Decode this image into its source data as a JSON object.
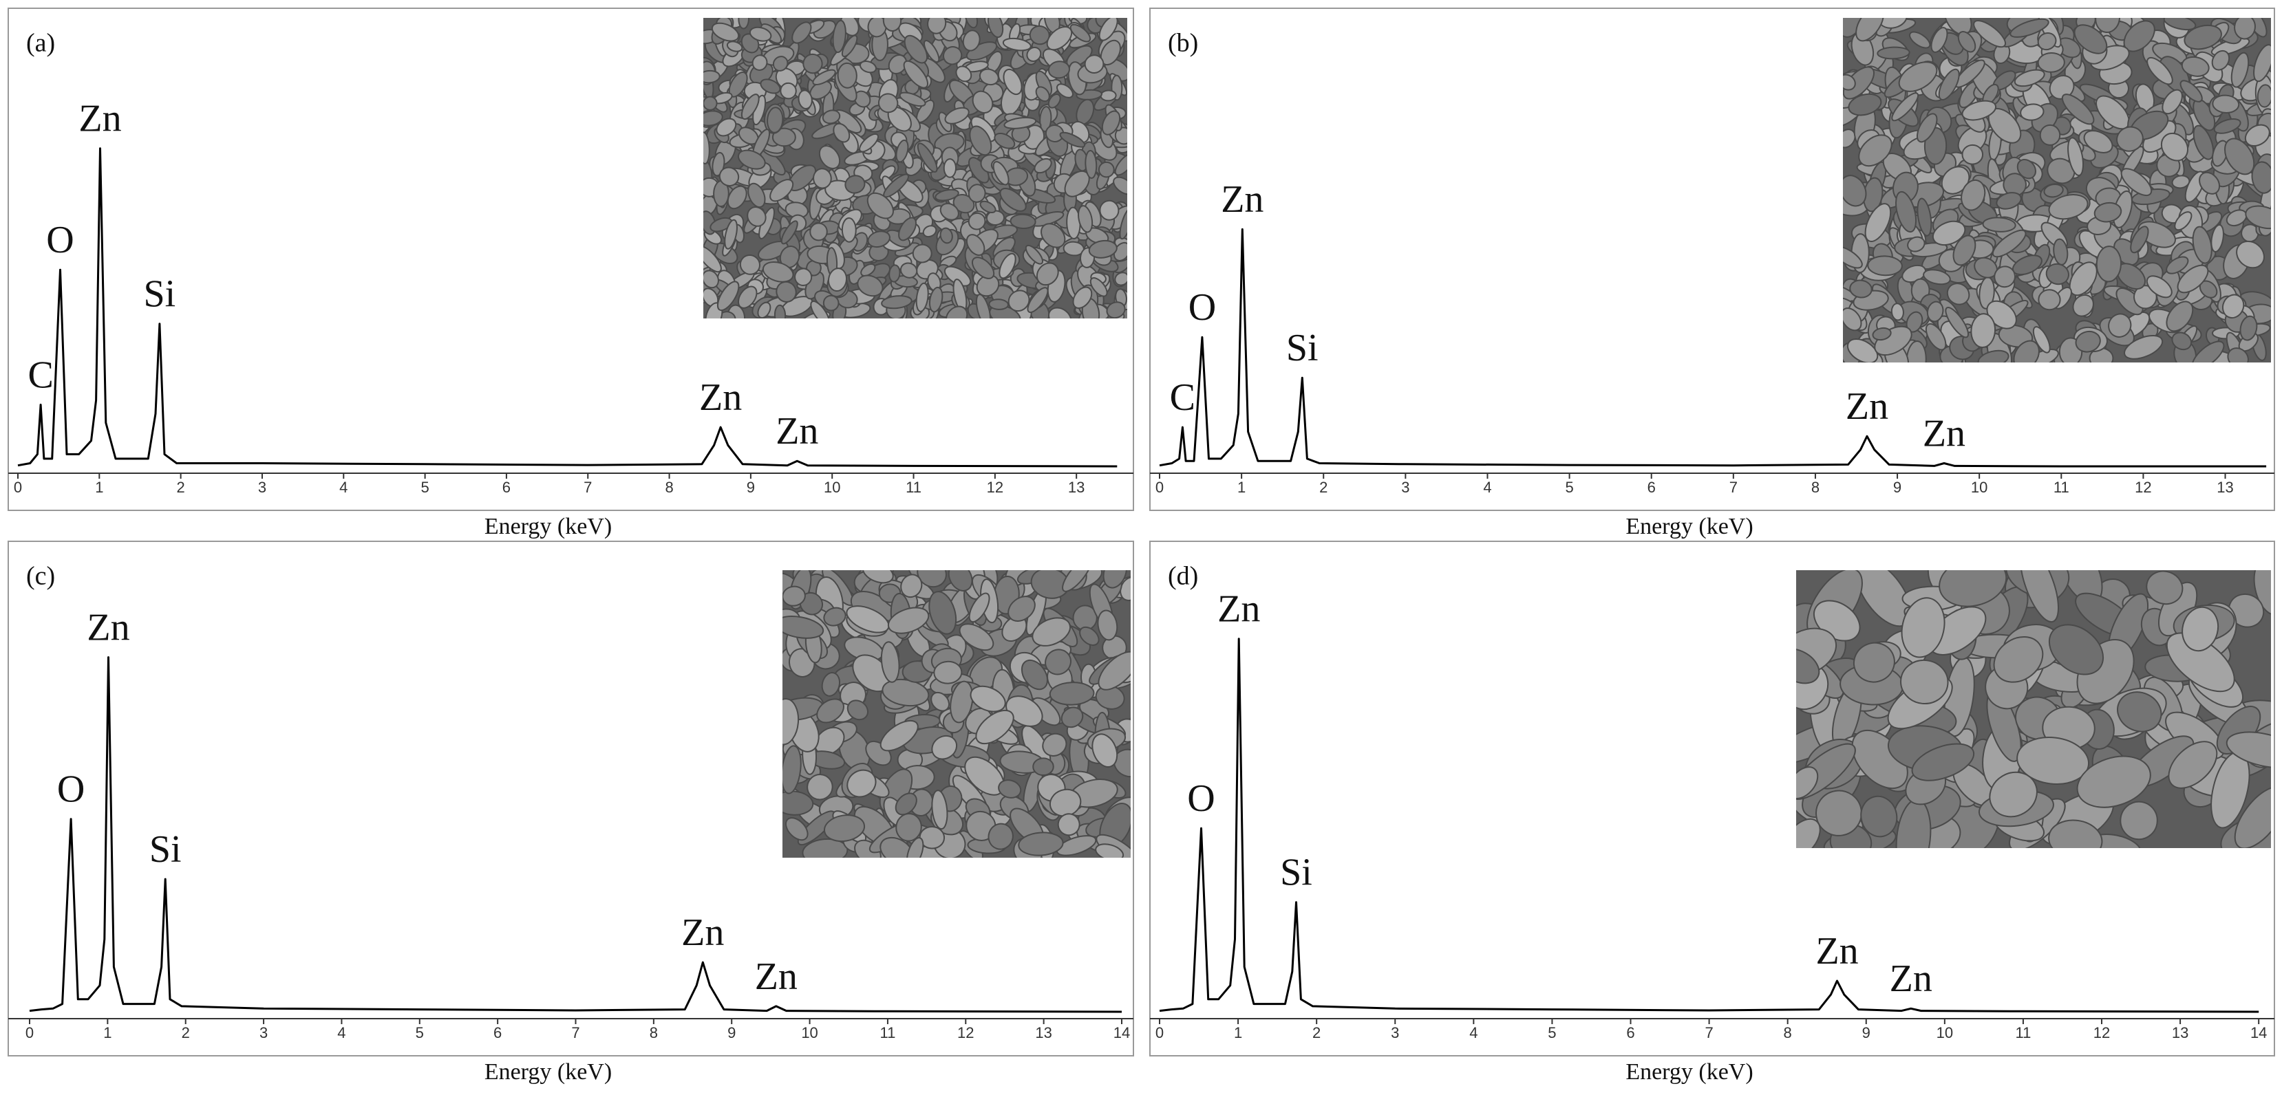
{
  "chart_data": [
    {
      "type": "line",
      "label": "(a)",
      "xlabel": "Energy (keV)",
      "x": [
        0,
        0.15,
        0.24,
        0.28,
        0.32,
        0.42,
        0.52,
        0.6,
        0.75,
        0.9,
        0.96,
        1.01,
        1.08,
        1.2,
        1.6,
        1.69,
        1.74,
        1.8,
        1.95,
        3,
        5,
        7,
        8.4,
        8.55,
        8.63,
        8.72,
        8.9,
        9.45,
        9.57,
        9.7,
        11,
        13.5
      ],
      "series": [
        {
          "color": "#000000",
          "values": [
            0.5,
            1,
            3,
            14,
            2,
            2,
            44,
            3,
            3,
            6,
            15,
            71,
            10,
            2,
            2,
            12,
            32,
            3,
            1,
            1,
            0.8,
            0.6,
            0.8,
            5,
            9,
            5,
            0.8,
            0.5,
            1.5,
            0.5,
            0.4,
            0.3
          ]
        }
      ],
      "xlim": [
        0,
        13.7
      ],
      "xticks": [
        0,
        1,
        2,
        3,
        4,
        5,
        6,
        7,
        8,
        9,
        10,
        11,
        12,
        13
      ],
      "ylim": [
        0,
        100
      ],
      "annotations": [
        {
          "text": "C",
          "x": 0.28,
          "y": 14
        },
        {
          "text": "O",
          "x": 0.52,
          "y": 44
        },
        {
          "text": "Zn",
          "x": 1.01,
          "y": 71
        },
        {
          "text": "Si",
          "x": 1.74,
          "y": 32
        },
        {
          "text": "Zn",
          "x": 8.63,
          "y": 9
        },
        {
          "text": "Zn",
          "x": 9.57,
          "y": 1.5
        }
      ]
    },
    {
      "type": "line",
      "label": "(b)",
      "xlabel": "Energy (keV)",
      "x": [
        0,
        0.15,
        0.24,
        0.28,
        0.32,
        0.42,
        0.52,
        0.6,
        0.75,
        0.9,
        0.96,
        1.01,
        1.08,
        1.2,
        1.6,
        1.69,
        1.74,
        1.8,
        1.95,
        3,
        5,
        7,
        8.4,
        8.55,
        8.63,
        8.72,
        8.9,
        9.45,
        9.57,
        9.7,
        11,
        13.5
      ],
      "series": [
        {
          "color": "#000000",
          "values": [
            0.5,
            1,
            2,
            9,
            1.5,
            1.5,
            29,
            2,
            2,
            5,
            12,
            53,
            8,
            1.5,
            1.5,
            8,
            20,
            2,
            1,
            0.8,
            0.6,
            0.5,
            0.7,
            4,
            7,
            4,
            0.7,
            0.4,
            1,
            0.4,
            0.3,
            0.3
          ]
        }
      ],
      "xlim": [
        0,
        13.6
      ],
      "xticks": [
        0,
        1,
        2,
        3,
        4,
        5,
        6,
        7,
        8,
        9,
        10,
        11,
        12,
        13
      ],
      "ylim": [
        0,
        100
      ],
      "annotations": [
        {
          "text": "C",
          "x": 0.28,
          "y": 9
        },
        {
          "text": "O",
          "x": 0.52,
          "y": 29
        },
        {
          "text": "Zn",
          "x": 1.01,
          "y": 53
        },
        {
          "text": "Si",
          "x": 1.74,
          "y": 20
        },
        {
          "text": "Zn",
          "x": 8.63,
          "y": 7
        },
        {
          "text": "Zn",
          "x": 9.57,
          "y": 1
        }
      ]
    },
    {
      "type": "line",
      "label": "(c)",
      "xlabel": "Energy (keV)",
      "x": [
        0,
        0.15,
        0.3,
        0.42,
        0.53,
        0.62,
        0.75,
        0.9,
        0.96,
        1.01,
        1.08,
        1.2,
        1.6,
        1.69,
        1.74,
        1.8,
        1.95,
        3,
        5,
        7,
        8.4,
        8.55,
        8.63,
        8.72,
        8.9,
        9.45,
        9.57,
        9.7,
        11,
        14
      ],
      "series": [
        {
          "color": "#000000",
          "values": [
            0.5,
            0.8,
            1,
            2,
            42,
            3,
            3,
            6,
            16,
            77,
            10,
            2,
            2,
            10,
            29,
            3,
            1.5,
            1,
            0.8,
            0.6,
            0.8,
            6,
            11,
            6,
            0.8,
            0.5,
            1.5,
            0.5,
            0.4,
            0.3
          ]
        }
      ],
      "xlim": [
        -0.15,
        14.15
      ],
      "xticks": [
        0,
        1,
        2,
        3,
        4,
        5,
        6,
        7,
        8,
        9,
        10,
        11,
        12,
        13,
        14
      ],
      "ylim": [
        0,
        100
      ],
      "annotations": [
        {
          "text": "O",
          "x": 0.53,
          "y": 42
        },
        {
          "text": "Zn",
          "x": 1.01,
          "y": 77
        },
        {
          "text": "Si",
          "x": 1.74,
          "y": 29
        },
        {
          "text": "Zn",
          "x": 8.63,
          "y": 11
        },
        {
          "text": "Zn",
          "x": 9.57,
          "y": 1.5
        }
      ]
    },
    {
      "type": "line",
      "label": "(d)",
      "xlabel": "Energy (keV)",
      "x": [
        0,
        0.15,
        0.3,
        0.42,
        0.53,
        0.62,
        0.75,
        0.9,
        0.96,
        1.01,
        1.08,
        1.2,
        1.6,
        1.69,
        1.74,
        1.8,
        1.95,
        3,
        5,
        7,
        8.4,
        8.55,
        8.63,
        8.72,
        8.9,
        9.45,
        9.57,
        9.7,
        11,
        14
      ],
      "series": [
        {
          "color": "#000000",
          "values": [
            0.5,
            0.8,
            1,
            2,
            40,
            3,
            3,
            6,
            16,
            81,
            10,
            2,
            2,
            9,
            24,
            3,
            1.5,
            1,
            0.8,
            0.6,
            0.8,
            4,
            7,
            4,
            0.8,
            0.5,
            1,
            0.5,
            0.4,
            0.3
          ]
        }
      ],
      "xlim": [
        0,
        14.2
      ],
      "xticks": [
        0,
        1,
        2,
        3,
        4,
        5,
        6,
        7,
        8,
        9,
        10,
        11,
        12,
        13,
        14
      ],
      "ylim": [
        0,
        100
      ],
      "annotations": [
        {
          "text": "O",
          "x": 0.53,
          "y": 40
        },
        {
          "text": "Zn",
          "x": 1.01,
          "y": 81
        },
        {
          "text": "Si",
          "x": 1.74,
          "y": 24
        },
        {
          "text": "Zn",
          "x": 8.63,
          "y": 7
        },
        {
          "text": "Zn",
          "x": 9.57,
          "y": 1
        }
      ]
    }
  ]
}
